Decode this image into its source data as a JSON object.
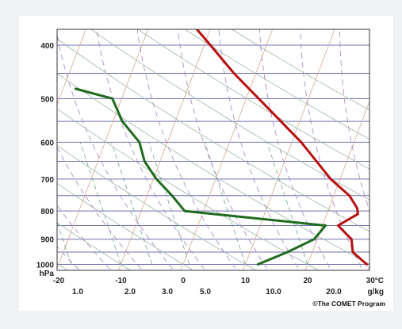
{
  "chart_data": {
    "type": "line",
    "title": "",
    "xlabel": "",
    "ylabel": "",
    "y_axis_scale": "log",
    "y_ticks": [
      400,
      500,
      600,
      700,
      800,
      900,
      1000
    ],
    "y_unit_label": "hPa",
    "x_ticks": [
      -20,
      -10,
      0,
      10,
      20
    ],
    "x_unit_label": "30°C",
    "mixing_ratio_ticks": [
      "1.0",
      "2.0",
      "3.0",
      "5.0",
      "10.0",
      "20.0"
    ],
    "mixing_ratio_unit": "g/kg",
    "ylim": [
      1000,
      360
    ],
    "xlim": [
      -20,
      30
    ],
    "grid": true,
    "series": [
      {
        "key": "temperature",
        "color": "#b80f0f",
        "points": [
          {
            "p": 1000,
            "t": 29.5
          },
          {
            "p": 950,
            "t": 26.5
          },
          {
            "p": 900,
            "t": 25.5
          },
          {
            "p": 850,
            "t": 22.5
          },
          {
            "p": 810,
            "t": 25.0
          },
          {
            "p": 790,
            "t": 24.5
          },
          {
            "p": 750,
            "t": 22.5
          },
          {
            "p": 700,
            "t": 18.5
          },
          {
            "p": 600,
            "t": 11.5
          },
          {
            "p": 500,
            "t": 2.0
          },
          {
            "p": 450,
            "t": -3.5
          },
          {
            "p": 400,
            "t": -9.0
          },
          {
            "p": 360,
            "t": -14.0
          }
        ]
      },
      {
        "key": "dewpoint",
        "color": "#1e6b1e",
        "points": [
          {
            "p": 1000,
            "t": 12.0
          },
          {
            "p": 950,
            "t": 16.0
          },
          {
            "p": 900,
            "t": 19.5
          },
          {
            "p": 850,
            "t": 20.5
          },
          {
            "p": 800,
            "t": -3.0
          },
          {
            "p": 750,
            "t": -6.0
          },
          {
            "p": 700,
            "t": -9.5
          },
          {
            "p": 650,
            "t": -12.5
          },
          {
            "p": 600,
            "t": -14.5
          },
          {
            "p": 550,
            "t": -18.5
          },
          {
            "p": 500,
            "t": -21.5
          },
          {
            "p": 480,
            "t": -28.0
          }
        ]
      }
    ],
    "credit": "©The COMET Program"
  }
}
